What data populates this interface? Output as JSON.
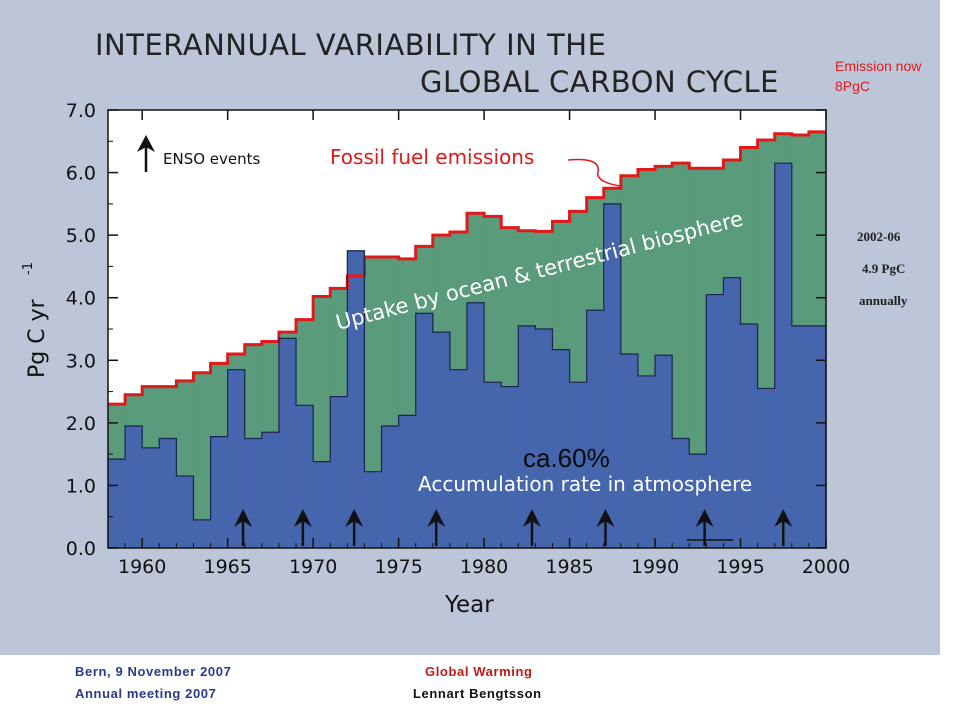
{
  "slide": {
    "title_line1": "INTERANNUAL VARIABILITY IN THE",
    "title_line2": "GLOBAL CARBON CYCLE",
    "note_emission_line1": "Emission now",
    "note_emission_line2": "8PgC",
    "side_period": "2002-06",
    "side_value": "4.9 PgC",
    "side_freq": "annually",
    "footer_left_line1": "Bern, 9 November 2007",
    "footer_left_line2": "Annual meeting 2007",
    "footer_center_line1": "Global Warming",
    "footer_center_line2": "Lennart Bengtsson"
  },
  "colors": {
    "background": "#bcc6d8",
    "plot_bg": "#ffffff",
    "atmosphere": "#4565ad",
    "uptake": "#5a9b7b",
    "fossil": "#e01a1a"
  },
  "chart_data": {
    "type": "area",
    "xlabel": "Year",
    "ylabel": "Pg C yr",
    "ylabel_sup": "-1",
    "xlim": [
      1958,
      2000
    ],
    "ylim": [
      0,
      7
    ],
    "xticks": [
      "1960",
      "1965",
      "1970",
      "1975",
      "1980",
      "1985",
      "1990",
      "1995",
      "2000"
    ],
    "yticks": [
      "0.0",
      "1.0",
      "2.0",
      "3.0",
      "4.0",
      "5.0",
      "6.0",
      "7.0"
    ],
    "legend_label": "ENSO events",
    "annotations": {
      "fossil": "Fossil fuel emissions",
      "uptake": "Uptake by ocean & terrestrial biosphere",
      "accumulation": "Accumulation rate in atmosphere",
      "percent": "ca.60%"
    },
    "years": [
      1958,
      1959,
      1960,
      1961,
      1962,
      1963,
      1964,
      1965,
      1966,
      1967,
      1968,
      1969,
      1970,
      1971,
      1972,
      1973,
      1974,
      1975,
      1976,
      1977,
      1978,
      1979,
      1980,
      1981,
      1982,
      1983,
      1984,
      1985,
      1986,
      1987,
      1988,
      1989,
      1990,
      1991,
      1992,
      1993,
      1994,
      1995,
      1996,
      1997,
      1998,
      1999
    ],
    "series": [
      {
        "name": "Fossil fuel emissions",
        "values": [
          2.3,
          2.45,
          2.58,
          2.58,
          2.67,
          2.8,
          2.95,
          3.1,
          3.25,
          3.3,
          3.45,
          3.65,
          4.02,
          4.15,
          4.35,
          4.65,
          4.65,
          4.62,
          4.82,
          5.0,
          5.05,
          5.35,
          5.3,
          5.12,
          5.07,
          5.06,
          5.22,
          5.38,
          5.6,
          5.75,
          5.95,
          6.05,
          6.1,
          6.15,
          6.07,
          6.07,
          6.2,
          6.4,
          6.52,
          6.62,
          6.6,
          6.65
        ]
      },
      {
        "name": "Accumulation rate in atmosphere",
        "values": [
          1.42,
          1.95,
          1.6,
          1.75,
          1.15,
          0.45,
          1.78,
          2.85,
          1.75,
          1.85,
          3.35,
          2.28,
          1.38,
          2.42,
          4.75,
          1.22,
          1.95,
          2.12,
          3.75,
          3.45,
          2.85,
          3.92,
          2.65,
          2.58,
          3.55,
          3.5,
          3.17,
          2.65,
          3.8,
          5.5,
          3.1,
          2.75,
          3.08,
          1.75,
          1.5,
          4.05,
          4.32,
          3.58,
          2.55,
          6.15,
          3.55,
          3.55
        ]
      }
    ],
    "enso_events": [
      1965.9,
      1969.4,
      1972.4,
      1977.2,
      1982.8,
      1987.1,
      1992.9,
      1997.5
    ]
  }
}
